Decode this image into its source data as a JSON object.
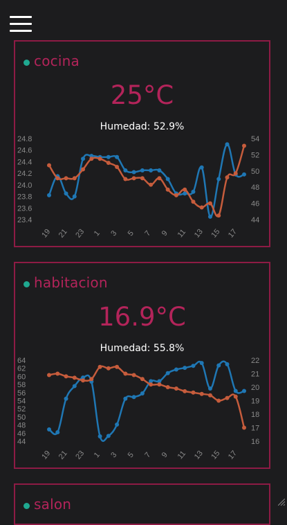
{
  "menu": {
    "icon": "hamburger-menu-icon"
  },
  "colors": {
    "accent": "#b3245a",
    "border": "#8e1b45",
    "dot": "#1fa890",
    "temp_series": "#1f77b4",
    "hum_series": "#c65c3c"
  },
  "rooms": [
    {
      "name": "cocina",
      "temperature": "25°C",
      "humidity": "Humedad: 52.9%"
    },
    {
      "name": "habitacion",
      "temperature": "16.9°C",
      "humidity": "Humedad: 55.8%"
    },
    {
      "name": "salon"
    }
  ],
  "chart_data": [
    {
      "type": "line",
      "x": [
        19,
        20,
        21,
        22,
        23,
        0,
        1,
        2,
        3,
        4,
        5,
        6,
        7,
        8,
        9,
        10,
        11,
        12,
        13,
        14,
        15,
        16,
        17,
        18
      ],
      "x_ticks": [
        "19",
        "21",
        "23",
        "1",
        "3",
        "5",
        "7",
        "9",
        "11",
        "13",
        "15",
        "17"
      ],
      "left_axis": {
        "ticks": [
          "24.8",
          "24.6",
          "24.4",
          "24.2",
          "24.0",
          "23.8",
          "23.6",
          "23.4"
        ],
        "ylim": [
          23.4,
          24.8
        ]
      },
      "right_axis": {
        "ticks": [
          "54",
          "52",
          "50",
          "48",
          "46",
          "44"
        ],
        "ylim": [
          44,
          54
        ]
      },
      "series": [
        {
          "axis": "left",
          "values": [
            23.82,
            24.15,
            23.85,
            23.8,
            24.45,
            24.5,
            24.48,
            24.48,
            24.48,
            24.25,
            24.22,
            24.25,
            24.25,
            24.25,
            24.1,
            23.85,
            23.85,
            23.88,
            24.3,
            23.45,
            24.1,
            24.7,
            24.18,
            24.18
          ]
        },
        {
          "axis": "right",
          "values": [
            50.7,
            49.1,
            49.1,
            49.1,
            50.2,
            51.5,
            51.5,
            51.0,
            50.5,
            49.0,
            49.1,
            49.1,
            48.3,
            49.1,
            47.7,
            47.0,
            47.7,
            46.2,
            45.5,
            46.0,
            44.5,
            49.2,
            49.7,
            53.1
          ]
        }
      ]
    },
    {
      "type": "line",
      "x": [
        19,
        20,
        21,
        22,
        23,
        0,
        1,
        2,
        3,
        4,
        5,
        6,
        7,
        8,
        9,
        10,
        11,
        12,
        13,
        14,
        15,
        16,
        17,
        18
      ],
      "x_ticks": [
        "19",
        "21",
        "23",
        "1",
        "3",
        "5",
        "7",
        "9",
        "11",
        "13",
        "15",
        "17"
      ],
      "left_axis": {
        "ticks": [
          "64",
          "62",
          "60",
          "58",
          "56",
          "54",
          "52",
          "50",
          "48",
          "46",
          "44"
        ],
        "ylim": [
          44,
          64
        ]
      },
      "right_axis": {
        "ticks": [
          "22",
          "21",
          "20",
          "19",
          "18",
          "17",
          "16"
        ],
        "ylim": [
          16,
          22
        ]
      },
      "series": [
        {
          "axis": "left",
          "values": [
            46.9,
            46.2,
            54.5,
            57.6,
            59.7,
            58.7,
            45.2,
            45.3,
            48.1,
            54.5,
            54.9,
            55.8,
            58.8,
            58.8,
            60.8,
            61.7,
            62.1,
            62.6,
            63.3,
            57.0,
            62.7,
            63.0,
            56.4,
            56.4
          ]
        },
        {
          "axis": "right",
          "values": [
            20.9,
            21.0,
            20.8,
            20.7,
            20.5,
            20.6,
            21.5,
            21.4,
            21.5,
            21.0,
            20.9,
            20.6,
            20.2,
            20.2,
            20.0,
            19.9,
            19.7,
            19.6,
            19.5,
            19.4,
            19.0,
            19.2,
            19.3,
            17.0
          ]
        }
      ]
    }
  ]
}
